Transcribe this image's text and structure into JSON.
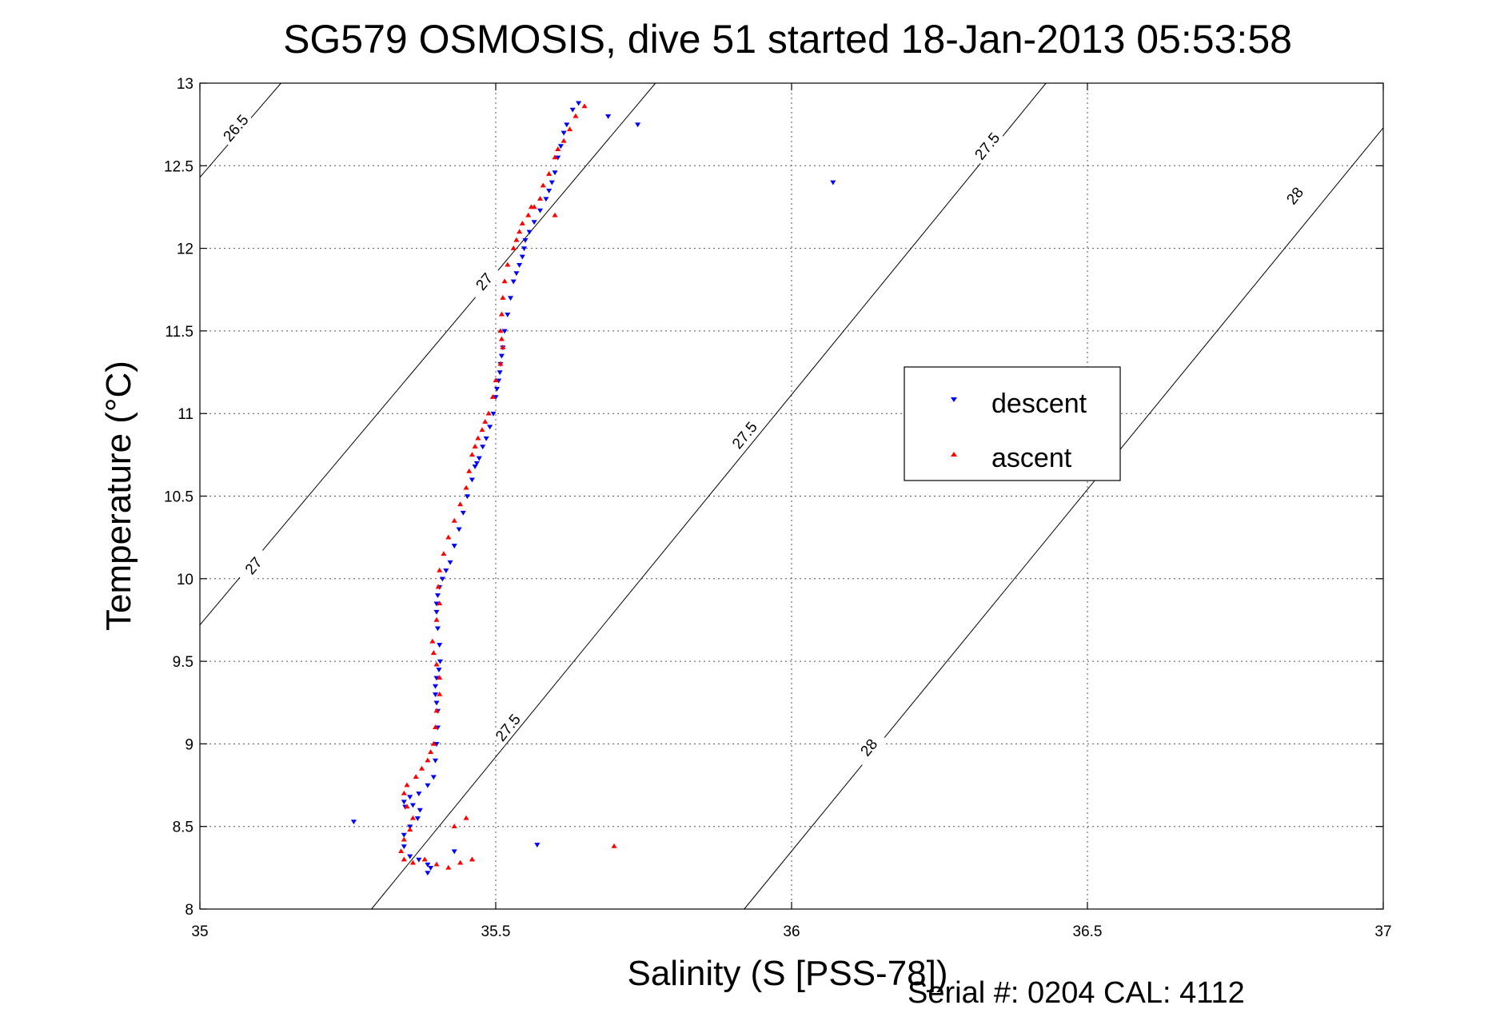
{
  "chart_data": {
    "type": "scatter",
    "title": "SG579 OSMOSIS, dive 51 started 18-Jan-2013 05:53:58",
    "xlabel": "Salinity (S [PSS-78])",
    "ylabel": "Temperature (°C)",
    "xlim": [
      35,
      37
    ],
    "ylim": [
      8,
      13
    ],
    "xticks": [
      "35",
      "35.5",
      "36",
      "36.5",
      "37"
    ],
    "yticks": [
      "8",
      "8.5",
      "9",
      "9.5",
      "10",
      "10.5",
      "11",
      "11.5",
      "12",
      "12.5",
      "13"
    ],
    "grid": true,
    "legend_position": "right-center",
    "footer": "Serial #: 0204  CAL: 4112",
    "density_contours": [
      {
        "level": "26.5",
        "points": [
          [
            35.0,
            12.43
          ],
          [
            35.137,
            13.0
          ]
        ],
        "labels": [
          [
            35.06,
            12.73
          ]
        ]
      },
      {
        "level": "27",
        "points": [
          [
            35.0,
            9.72
          ],
          [
            35.77,
            13.0
          ]
        ],
        "labels": [
          [
            35.09,
            10.08
          ],
          [
            35.48,
            11.8
          ]
        ]
      },
      {
        "level": "27.5",
        "points": [
          [
            35.29,
            8.0
          ],
          [
            36.43,
            13.0
          ]
        ],
        "labels": [
          [
            35.52,
            9.1
          ],
          [
            35.92,
            10.87
          ],
          [
            36.33,
            12.62
          ]
        ]
      },
      {
        "level": "28",
        "points": [
          [
            35.92,
            8.0
          ],
          [
            37.0,
            12.73
          ]
        ],
        "labels": [
          [
            36.13,
            8.98
          ],
          [
            36.85,
            12.32
          ]
        ]
      }
    ],
    "series": [
      {
        "name": "descent",
        "color": "#0000ff",
        "marker": "triangle-down",
        "x": [
          35.64,
          35.63,
          35.62,
          35.615,
          35.61,
          35.605,
          35.6,
          35.595,
          35.59,
          35.585,
          35.575,
          35.565,
          35.557,
          35.55,
          35.548,
          35.545,
          35.54,
          35.535,
          35.53,
          35.525,
          35.52,
          35.515,
          35.512,
          35.51,
          35.508,
          35.507,
          35.505,
          35.502,
          35.5,
          35.496,
          35.49,
          35.484,
          35.478,
          35.472,
          35.468,
          35.465,
          35.46,
          35.452,
          35.445,
          35.438,
          35.43,
          35.423,
          35.416,
          35.41,
          35.405,
          35.402,
          35.4,
          35.4,
          35.402,
          35.405,
          35.406,
          35.404,
          35.4,
          35.398,
          35.398,
          35.4,
          35.402,
          35.402,
          35.4,
          35.398,
          35.395,
          35.385,
          35.37,
          35.355,
          35.345,
          35.347,
          35.36,
          35.372,
          35.368,
          35.355,
          35.345,
          35.345,
          35.355,
          35.37,
          35.385,
          35.39,
          35.385,
          35.26,
          35.74,
          35.69,
          36.07,
          35.57,
          35.43
        ],
        "y": [
          12.88,
          12.84,
          12.75,
          12.7,
          12.62,
          12.55,
          12.46,
          12.4,
          12.35,
          12.3,
          12.23,
          12.16,
          12.1,
          12.05,
          12.0,
          11.95,
          11.9,
          11.85,
          11.8,
          11.7,
          11.6,
          11.5,
          11.4,
          11.35,
          11.3,
          11.25,
          11.2,
          11.15,
          11.1,
          11.0,
          10.92,
          10.85,
          10.8,
          10.73,
          10.7,
          10.68,
          10.6,
          10.5,
          10.4,
          10.3,
          10.2,
          10.1,
          10.05,
          10.0,
          9.95,
          9.9,
          9.85,
          9.8,
          9.7,
          9.6,
          9.5,
          9.45,
          9.4,
          9.35,
          9.3,
          9.25,
          9.2,
          9.1,
          9.0,
          8.9,
          8.8,
          8.75,
          8.7,
          8.68,
          8.65,
          8.62,
          8.63,
          8.6,
          8.55,
          8.5,
          8.45,
          8.38,
          8.32,
          8.3,
          8.27,
          8.25,
          8.22,
          8.53,
          12.75,
          12.8,
          12.4,
          8.39,
          8.35
        ]
      },
      {
        "name": "ascent",
        "color": "#ff0000",
        "marker": "triangle-up",
        "x": [
          35.65,
          35.635,
          35.625,
          35.615,
          35.605,
          35.6,
          35.59,
          35.58,
          35.575,
          35.565,
          35.555,
          35.545,
          35.54,
          35.535,
          35.53,
          35.52,
          35.515,
          35.512,
          35.51,
          35.508,
          35.51,
          35.512,
          35.508,
          35.5,
          35.495,
          35.488,
          35.482,
          35.477,
          35.47,
          35.465,
          35.46,
          35.455,
          35.45,
          35.44,
          35.43,
          35.42,
          35.412,
          35.405,
          35.403,
          35.405,
          35.4,
          35.393,
          35.395,
          35.4,
          35.405,
          35.405,
          35.4,
          35.398,
          35.395,
          35.39,
          35.385,
          35.375,
          35.365,
          35.35,
          35.345,
          35.35,
          35.36,
          35.355,
          35.345,
          35.34,
          35.345,
          35.36,
          35.38,
          35.4,
          35.42,
          35.44,
          35.46,
          35.45,
          35.43,
          35.7,
          35.6,
          35.56
        ],
        "y": [
          12.86,
          12.8,
          12.72,
          12.65,
          12.6,
          12.55,
          12.45,
          12.38,
          12.3,
          12.25,
          12.2,
          12.15,
          12.1,
          12.05,
          12.0,
          11.9,
          11.8,
          11.7,
          11.6,
          11.5,
          11.45,
          11.4,
          11.3,
          11.2,
          11.1,
          11.0,
          10.95,
          10.9,
          10.85,
          10.8,
          10.75,
          10.65,
          10.55,
          10.45,
          10.35,
          10.25,
          10.15,
          10.05,
          9.95,
          9.85,
          9.75,
          9.62,
          9.55,
          9.48,
          9.4,
          9.3,
          9.2,
          9.1,
          9.0,
          8.95,
          8.9,
          8.85,
          8.8,
          8.75,
          8.7,
          8.62,
          8.55,
          8.48,
          8.42,
          8.35,
          8.3,
          8.28,
          8.3,
          8.27,
          8.25,
          8.28,
          8.3,
          8.55,
          8.5,
          8.38,
          12.2,
          12.25
        ]
      }
    ]
  }
}
